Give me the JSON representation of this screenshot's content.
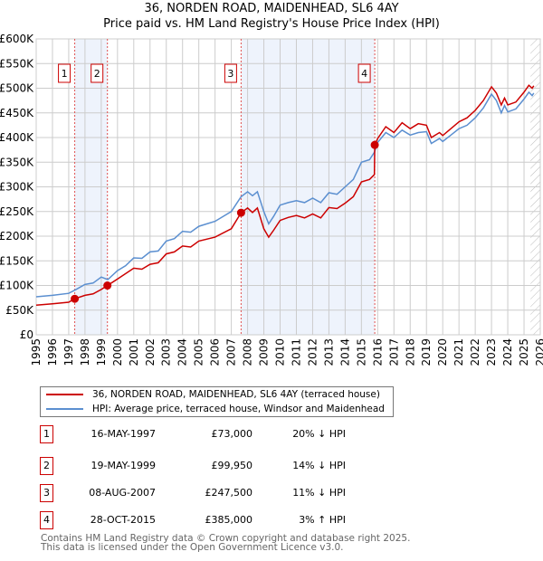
{
  "title_line1": "36, NORDEN ROAD, MAIDENHEAD, SL6 4AY",
  "title_line2": "Price paid vs. HM Land Registry's House Price Index (HPI)",
  "chart_data": {
    "type": "line",
    "xlim": [
      1995,
      2026
    ],
    "ylim": [
      0,
      600000
    ],
    "yticks": [
      0,
      50000,
      100000,
      150000,
      200000,
      250000,
      300000,
      350000,
      400000,
      450000,
      500000,
      550000,
      600000
    ],
    "ytick_labels": [
      "£0",
      "£50K",
      "£100K",
      "£150K",
      "£200K",
      "£250K",
      "£300K",
      "£350K",
      "£400K",
      "£450K",
      "£500K",
      "£550K",
      "£600K"
    ],
    "xtick_labels": [
      "1995",
      "1996",
      "1997",
      "1998",
      "1999",
      "2000",
      "2001",
      "2002",
      "2003",
      "2004",
      "2005",
      "2006",
      "2007",
      "2008",
      "2009",
      "2010",
      "2011",
      "2012",
      "2013",
      "2014",
      "2015",
      "2016",
      "2017",
      "2018",
      "2019",
      "2020",
      "2021",
      "2022",
      "2023",
      "2024",
      "2025",
      "2026"
    ],
    "grid": true,
    "series": [
      {
        "name": "36, NORDEN ROAD, MAIDENHEAD, SL6 4AY (terraced house)",
        "color": "#cc0000",
        "x": [
          1995,
          1996,
          1997,
          1997.37,
          1998,
          1998.5,
          1999,
          1999.38,
          2000,
          2001,
          2001.5,
          2002,
          2002.5,
          2003,
          2003.5,
          2004,
          2004.5,
          2005,
          2006,
          2007,
          2007.6,
          2008,
          2008.3,
          2008.6,
          2009,
          2009.3,
          2009.6,
          2010,
          2010.5,
          2011,
          2011.5,
          2012,
          2012.5,
          2013,
          2013.5,
          2014,
          2014.5,
          2015,
          2015.5,
          2015.8,
          2015.82,
          2016,
          2016.5,
          2017,
          2017.5,
          2018,
          2018.5,
          2019,
          2019.3,
          2019.8,
          2020,
          2020.5,
          2021,
          2021.5,
          2022,
          2022.5,
          2023,
          2023.3,
          2023.6,
          2023.8,
          2024,
          2024.5,
          2025,
          2025.3,
          2025.5,
          2025.6
        ],
        "y": [
          60000,
          63000,
          66000,
          73000,
          80000,
          83000,
          92000,
          99950,
          113000,
          135000,
          133000,
          143000,
          146000,
          164000,
          168000,
          180000,
          178000,
          190000,
          198000,
          215000,
          247500,
          257000,
          248000,
          257000,
          215000,
          198000,
          212000,
          232000,
          238000,
          242000,
          237000,
          245000,
          237000,
          258000,
          256000,
          267000,
          280000,
          310000,
          315000,
          325000,
          385000,
          398000,
          422000,
          410000,
          430000,
          418000,
          428000,
          425000,
          400000,
          410000,
          404000,
          418000,
          432000,
          440000,
          455000,
          475000,
          503000,
          490000,
          466000,
          480000,
          466000,
          472000,
          492000,
          506000,
          500000,
          505000
        ]
      },
      {
        "name": "HPI: Average price, terraced house, Windsor and Maidenhead",
        "color": "#5b8fd0",
        "x": [
          1995,
          1996,
          1997,
          1997.4,
          1998,
          1998.5,
          1999,
          1999.4,
          2000,
          2000.5,
          2001,
          2001.5,
          2002,
          2002.5,
          2003,
          2003.5,
          2004,
          2004.5,
          2005,
          2006,
          2007,
          2007.6,
          2008,
          2008.3,
          2008.6,
          2009,
          2009.3,
          2009.6,
          2010,
          2010.5,
          2011,
          2011.5,
          2012,
          2012.5,
          2013,
          2013.5,
          2014,
          2014.5,
          2015,
          2015.5,
          2015.8,
          2016,
          2016.5,
          2017,
          2017.5,
          2018,
          2018.5,
          2019,
          2019.3,
          2019.8,
          2020,
          2020.5,
          2021,
          2021.5,
          2022,
          2022.5,
          2023,
          2023.3,
          2023.6,
          2023.8,
          2024,
          2024.5,
          2025,
          2025.3,
          2025.5,
          2025.6
        ],
        "y": [
          77000,
          80000,
          84000,
          91000,
          102000,
          105000,
          117000,
          112000,
          130000,
          140000,
          156000,
          155000,
          168000,
          170000,
          190000,
          195000,
          210000,
          208000,
          220000,
          230000,
          250000,
          280000,
          290000,
          282000,
          290000,
          250000,
          225000,
          240000,
          263000,
          268000,
          272000,
          268000,
          277000,
          268000,
          288000,
          285000,
          300000,
          315000,
          350000,
          355000,
          370000,
          390000,
          410000,
          400000,
          415000,
          405000,
          410000,
          412000,
          388000,
          398000,
          392000,
          405000,
          418000,
          425000,
          440000,
          460000,
          488000,
          475000,
          450000,
          465000,
          452000,
          458000,
          478000,
          492000,
          485000,
          490000
        ]
      }
    ],
    "sales": [
      {
        "n": "1",
        "x": 1997.37,
        "y": 73000,
        "date": "16-MAY-1997",
        "price": "£73,000",
        "hpi": "20% ↓ HPI"
      },
      {
        "n": "2",
        "x": 1999.38,
        "y": 99950,
        "date": "19-MAY-1999",
        "price": "£99,950",
        "hpi": "14% ↓ HPI"
      },
      {
        "n": "3",
        "x": 2007.6,
        "y": 247500,
        "date": "08-AUG-2007",
        "price": "£247,500",
        "hpi": "11% ↓ HPI"
      },
      {
        "n": "4",
        "x": 2015.82,
        "y": 385000,
        "date": "28-OCT-2015",
        "price": "£385,000",
        "hpi": "3% ↑ HPI"
      }
    ],
    "shaded_ranges": [
      [
        1997.37,
        1999.38
      ],
      [
        2007.6,
        2015.82
      ]
    ],
    "hatched_from": 2025.4
  },
  "legend": {
    "property": "36, NORDEN ROAD, MAIDENHEAD, SL6 4AY (terraced house)",
    "hpi": "HPI: Average price, terraced house, Windsor and Maidenhead"
  },
  "footer_line1": "Contains HM Land Registry data © Crown copyright and database right 2025.",
  "footer_line2": "This data is licensed under the Open Government Licence v3.0."
}
